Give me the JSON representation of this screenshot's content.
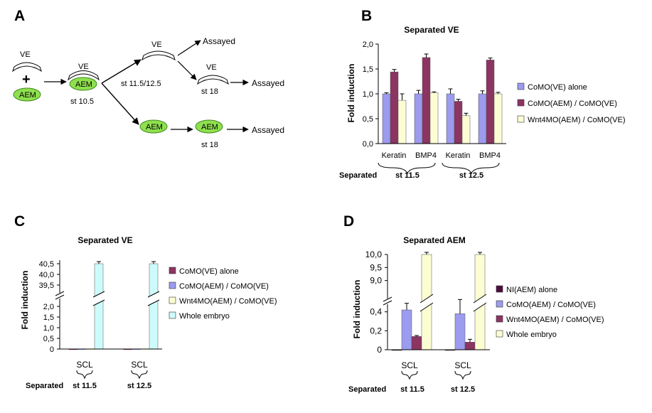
{
  "panels": {
    "a": {
      "label": "A"
    },
    "b": {
      "label": "B"
    },
    "c": {
      "label": "C"
    },
    "d": {
      "label": "D"
    }
  },
  "diagram": {
    "ve": "VE",
    "plus": "+",
    "aem": "AEM",
    "st_10_5": "st 10.5",
    "st_11_12": "st 11.5/12.5",
    "st_18": "st 18",
    "assayed": "Assayed"
  },
  "colors": {
    "nl_aem": "#4b0e3f",
    "como_ve": "#9b9bef",
    "como_aem": "#8c3462",
    "wnt4mo": "#fdfdd4",
    "whole_embryo": "#cdfbfb",
    "aem_green": "#8fe04f"
  },
  "chart_data": [
    {
      "panel": "B",
      "type": "bar",
      "title": "Separated VE",
      "ylabel": "Fold induction",
      "ylim": [
        0,
        2
      ],
      "yticks": [
        "0,0",
        "0,5",
        "1,0",
        "1,5",
        "2,0"
      ],
      "categories": [
        "Keratin",
        "BMP4",
        "Keratin",
        "BMP4"
      ],
      "groups": [
        {
          "label": "st 11.5"
        },
        {
          "label": "st 12.5"
        }
      ],
      "row_label": "Separated",
      "series": [
        {
          "name": "CoMO(VE) alone",
          "color": "como_ve",
          "values": [
            1.0,
            1.0,
            1.0,
            1.0
          ],
          "errors": [
            0.02,
            0.07,
            0.1,
            0.06
          ]
        },
        {
          "name": "CoMO(AEM) / CoMO(VE)",
          "color": "como_aem",
          "values": [
            1.44,
            1.73,
            0.85,
            1.68
          ],
          "errors": [
            0.05,
            0.07,
            0.04,
            0.04
          ]
        },
        {
          "name": "Wnt4MO(AEM) / CoMO(VE)",
          "color": "wnt4mo",
          "values": [
            0.87,
            1.02,
            0.56,
            1.0
          ],
          "errors": [
            0.13,
            0.02,
            0.05,
            0.03
          ]
        }
      ]
    },
    {
      "panel": "C",
      "type": "bar",
      "title": "Separated VE",
      "ylabel": "Fold induction",
      "broken_axis": true,
      "ylim_lower": [
        0,
        2.0
      ],
      "ylim_upper": [
        39.5,
        40.5
      ],
      "yticks_lower": [
        "0",
        "0,5",
        "1,0",
        "1,5",
        "2,0"
      ],
      "yticks_upper": [
        "39,5",
        "40,0",
        "40,5"
      ],
      "categories": [
        "SCL",
        "SCL"
      ],
      "groups": [
        {
          "label": "st 11.5"
        },
        {
          "label": "st 12.5"
        }
      ],
      "row_label": "Separated",
      "series": [
        {
          "name": "CoMO(VE) alone",
          "color": "como_aem",
          "values": [
            0.005,
            0.005
          ]
        },
        {
          "name": "CoMO(AEM) / CoMO(VE)",
          "color": "como_ve",
          "values": [
            0.005,
            0.005
          ]
        },
        {
          "name": "Wnt4MO(AEM) / CoMO(VE)",
          "color": "wnt4mo",
          "values": [
            0.005,
            0.005
          ]
        },
        {
          "name": "Whole embryo",
          "color": "whole_embryo",
          "values": [
            40.5,
            40.5
          ]
        }
      ]
    },
    {
      "panel": "D",
      "type": "bar",
      "title": "Separated AEM",
      "ylabel": "Fold induction",
      "broken_axis": true,
      "ylim_lower": [
        0,
        0.45
      ],
      "ylim_upper": [
        8.8,
        10.0
      ],
      "yticks_lower": [
        "0",
        "0,2",
        "0,4"
      ],
      "yticks_upper": [
        "9,0",
        "9,5",
        "10,0"
      ],
      "categories": [
        "SCL",
        "SCL"
      ],
      "groups": [
        {
          "label": "st 11.5"
        },
        {
          "label": "st 12.5"
        }
      ],
      "row_label": "Separated",
      "series": [
        {
          "name": "NI(AEM) alone",
          "color": "nl_aem",
          "values": [
            0.0,
            0.0
          ]
        },
        {
          "name": "CoMO(AEM) / CoMO(VE)",
          "color": "como_ve",
          "values": [
            0.42,
            0.38
          ],
          "errors": [
            0.07,
            0.15
          ]
        },
        {
          "name": "Wnt4MO(AEM) / CoMO(VE)",
          "color": "como_aem",
          "values": [
            0.14,
            0.08
          ],
          "errors": [
            0.01,
            0.03
          ]
        },
        {
          "name": "Whole embryo",
          "color": "wnt4mo",
          "values": [
            10.0,
            10.0
          ]
        }
      ]
    }
  ]
}
